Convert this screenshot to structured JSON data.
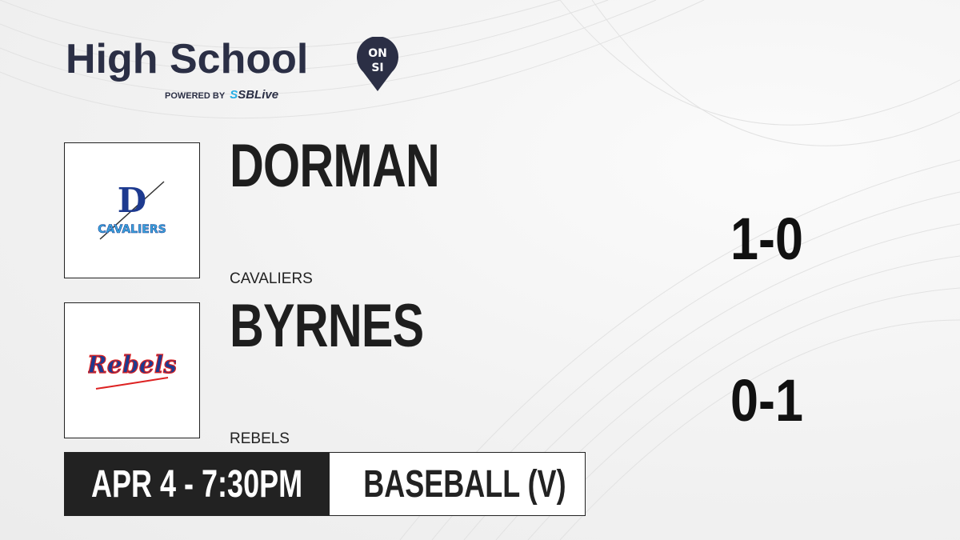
{
  "brand": {
    "title": "High School",
    "badge_top": "ON",
    "badge_bottom": "SI",
    "powered_by": "POWERED BY",
    "partner_s": "S",
    "partner": "SBLive"
  },
  "teams": [
    {
      "name": "DORMAN",
      "mascot": "CAVALIERS",
      "record": "1-0",
      "logo_text": "CAVALIERS",
      "logo_letter": "D"
    },
    {
      "name": "BYRNES",
      "mascot": "REBELS",
      "record": "0-1",
      "logo_text": "Rebels"
    }
  ],
  "game": {
    "datetime": "APR 4 - 7:30PM",
    "sport": "BASEBALL (V)"
  },
  "colors": {
    "brand_navy": "#2b2f45",
    "partner_blue": "#27aee4",
    "dark_bar": "#222222"
  }
}
